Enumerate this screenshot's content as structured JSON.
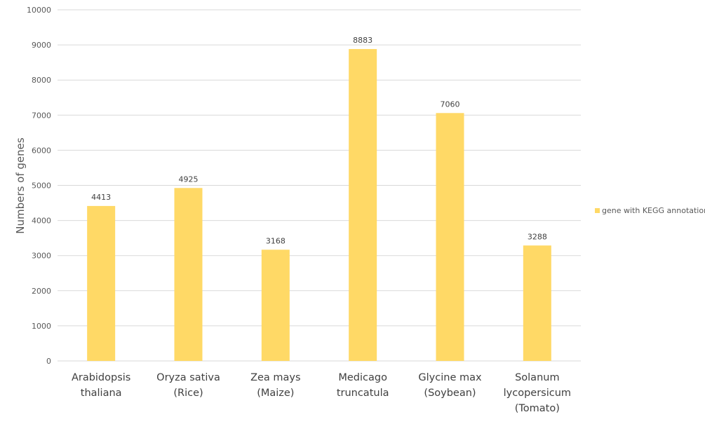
{
  "chart_data": {
    "type": "bar",
    "y_label": "Numbers of genes",
    "categories": [
      "Arabidopsis thaliana",
      "Oryza sativa (Rice)",
      "Zea mays (Maize)",
      "Medicago truncatula",
      "Glycine max (Soybean)",
      "Solanum lycopersicum (Tomato)"
    ],
    "series": [
      {
        "name": "gene with KEGG annotation",
        "color": "#ffd966",
        "values": [
          4413,
          4925,
          3168,
          8883,
          7060,
          3288
        ]
      }
    ],
    "ylim": [
      0,
      10000
    ],
    "yticks": [
      0,
      1000,
      2000,
      3000,
      4000,
      5000,
      6000,
      7000,
      8000,
      9000,
      10000
    ],
    "grid": true,
    "legend": "right"
  }
}
